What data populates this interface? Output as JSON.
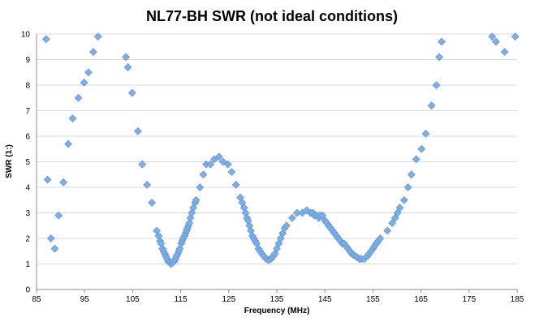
{
  "chart_data": {
    "type": "scatter",
    "title": "NL77-BH SWR (not ideal conditions)",
    "xlabel": "Frequency (MHz)",
    "ylabel": "SWR (1:)",
    "xlim": [
      85,
      185
    ],
    "ylim": [
      0,
      10
    ],
    "x_ticks": [
      85,
      95,
      105,
      115,
      125,
      135,
      145,
      155,
      165,
      175,
      185
    ],
    "y_ticks": [
      0,
      1,
      2,
      3,
      4,
      5,
      6,
      7,
      8,
      9,
      10
    ],
    "grid": "horizontal",
    "legend": "none",
    "marker": "diamond",
    "color": "#7eaee4",
    "series": [
      {
        "points": [
          [
            87.0,
            9.8
          ],
          [
            87.3,
            4.3
          ],
          [
            88.0,
            2.0
          ],
          [
            88.8,
            1.6
          ],
          [
            89.6,
            2.9
          ],
          [
            90.6,
            4.2
          ],
          [
            91.6,
            5.7
          ],
          [
            92.5,
            6.7
          ],
          [
            93.7,
            7.5
          ],
          [
            94.9,
            8.1
          ],
          [
            95.8,
            8.5
          ],
          [
            96.8,
            9.3
          ],
          [
            97.8,
            9.9
          ],
          [
            103.6,
            9.1
          ],
          [
            104.0,
            8.7
          ],
          [
            104.9,
            7.7
          ],
          [
            106.1,
            6.2
          ],
          [
            107.0,
            4.9
          ],
          [
            108.0,
            4.1
          ],
          [
            109.0,
            3.4
          ],
          [
            110.0,
            2.3
          ],
          [
            110.4,
            2.1
          ],
          [
            110.7,
            1.9
          ],
          [
            110.9,
            1.8
          ],
          [
            111.2,
            1.6
          ],
          [
            111.4,
            1.5
          ],
          [
            111.7,
            1.4
          ],
          [
            111.9,
            1.3
          ],
          [
            112.2,
            1.2
          ],
          [
            112.4,
            1.1
          ],
          [
            112.7,
            1.05
          ],
          [
            113.0,
            1.0
          ],
          [
            113.3,
            1.05
          ],
          [
            113.6,
            1.1
          ],
          [
            113.9,
            1.2
          ],
          [
            114.1,
            1.3
          ],
          [
            114.4,
            1.4
          ],
          [
            114.6,
            1.5
          ],
          [
            114.8,
            1.6
          ],
          [
            115.1,
            1.8
          ],
          [
            115.3,
            1.9
          ],
          [
            115.5,
            2.0
          ],
          [
            115.8,
            2.1
          ],
          [
            116.0,
            2.2
          ],
          [
            116.2,
            2.3
          ],
          [
            116.4,
            2.4
          ],
          [
            116.6,
            2.5
          ],
          [
            116.8,
            2.6
          ],
          [
            117.0,
            2.8
          ],
          [
            117.3,
            3.0
          ],
          [
            117.6,
            3.2
          ],
          [
            118.0,
            3.4
          ],
          [
            118.2,
            3.5
          ],
          [
            119.0,
            4.0
          ],
          [
            119.7,
            4.5
          ],
          [
            120.3,
            4.9
          ],
          [
            121.2,
            4.9
          ],
          [
            122.0,
            5.1
          ],
          [
            123.0,
            5.2
          ],
          [
            123.8,
            5.0
          ],
          [
            124.8,
            4.9
          ],
          [
            125.6,
            4.6
          ],
          [
            126.5,
            4.1
          ],
          [
            127.4,
            3.6
          ],
          [
            127.8,
            3.4
          ],
          [
            128.2,
            3.2
          ],
          [
            128.5,
            3.0
          ],
          [
            128.8,
            2.8
          ],
          [
            129.0,
            2.7
          ],
          [
            129.3,
            2.5
          ],
          [
            129.6,
            2.3
          ],
          [
            129.9,
            2.1
          ],
          [
            130.2,
            2.0
          ],
          [
            130.5,
            1.9
          ],
          [
            130.8,
            1.8
          ],
          [
            131.2,
            1.6
          ],
          [
            131.5,
            1.5
          ],
          [
            131.9,
            1.4
          ],
          [
            132.3,
            1.3
          ],
          [
            132.8,
            1.2
          ],
          [
            133.3,
            1.15
          ],
          [
            133.8,
            1.2
          ],
          [
            134.2,
            1.3
          ],
          [
            134.6,
            1.4
          ],
          [
            135.0,
            1.6
          ],
          [
            135.4,
            1.8
          ],
          [
            135.8,
            2.0
          ],
          [
            136.2,
            2.2
          ],
          [
            136.6,
            2.4
          ],
          [
            137.0,
            2.5
          ],
          [
            138.2,
            2.8
          ],
          [
            139.2,
            3.0
          ],
          [
            140.3,
            3.0
          ],
          [
            141.2,
            3.1
          ],
          [
            142.0,
            3.0
          ],
          [
            142.5,
            3.0
          ],
          [
            142.8,
            2.9
          ],
          [
            143.3,
            2.9
          ],
          [
            143.7,
            2.8
          ],
          [
            144.0,
            2.9
          ],
          [
            144.5,
            2.9
          ],
          [
            145.0,
            2.7
          ],
          [
            145.4,
            2.6
          ],
          [
            145.8,
            2.5
          ],
          [
            146.2,
            2.4
          ],
          [
            146.6,
            2.3
          ],
          [
            147.0,
            2.2
          ],
          [
            147.4,
            2.1
          ],
          [
            147.8,
            2.0
          ],
          [
            148.2,
            1.9
          ],
          [
            148.6,
            1.8
          ],
          [
            149.0,
            1.8
          ],
          [
            149.4,
            1.7
          ],
          [
            149.8,
            1.6
          ],
          [
            150.2,
            1.5
          ],
          [
            150.6,
            1.4
          ],
          [
            151.0,
            1.35
          ],
          [
            151.4,
            1.3
          ],
          [
            151.8,
            1.25
          ],
          [
            152.2,
            1.2
          ],
          [
            152.6,
            1.2
          ],
          [
            153.2,
            1.2
          ],
          [
            153.8,
            1.3
          ],
          [
            154.2,
            1.4
          ],
          [
            154.6,
            1.5
          ],
          [
            155.0,
            1.6
          ],
          [
            155.3,
            1.7
          ],
          [
            155.7,
            1.8
          ],
          [
            156.1,
            1.9
          ],
          [
            156.5,
            2.0
          ],
          [
            158.0,
            2.3
          ],
          [
            159.0,
            2.6
          ],
          [
            159.6,
            2.8
          ],
          [
            160.1,
            3.0
          ],
          [
            160.6,
            3.2
          ],
          [
            161.5,
            3.5
          ],
          [
            162.3,
            4.0
          ],
          [
            163.0,
            4.5
          ],
          [
            164.0,
            5.1
          ],
          [
            165.1,
            5.5
          ],
          [
            166.0,
            6.1
          ],
          [
            167.2,
            7.2
          ],
          [
            168.2,
            8.0
          ],
          [
            168.8,
            9.1
          ],
          [
            169.3,
            9.7
          ],
          [
            179.8,
            9.9
          ],
          [
            180.6,
            9.7
          ],
          [
            182.4,
            9.3
          ],
          [
            184.6,
            9.9
          ]
        ]
      }
    ]
  }
}
